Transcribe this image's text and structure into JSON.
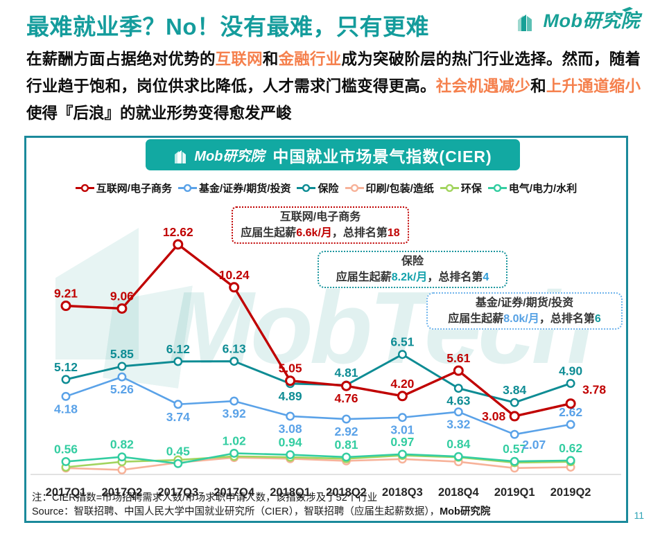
{
  "page": {
    "page_number": "11",
    "title_color": "#149C9C",
    "highlight_color": "#F5804D",
    "panel_border_color": "#1B8A9B",
    "banner_color": "#12A9A2"
  },
  "header": {
    "title": "最难就业季？No！没有最难，只有更难",
    "logo_text": "Mob研究院"
  },
  "intro": {
    "segments": [
      {
        "text": "在薪酬方面占据绝对优势的"
      },
      {
        "text": "互联网"
      },
      {
        "text": "和"
      },
      {
        "text": "金融行业"
      },
      {
        "text": "成为突破阶层的热门行业选择。然而，随着行业趋于饱和，岗位供求比降低，人才需求门槛变得更高。"
      },
      {
        "text": "社会机遇减少"
      },
      {
        "text": "和"
      },
      {
        "text": "上升通道缩小"
      },
      {
        "text": "使得『后浪』的就业形势变得愈发严峻"
      }
    ]
  },
  "panel": {
    "banner": {
      "logo_text": "Mob研究院",
      "title": "中国就业市场景气指数(CIER)"
    },
    "watermark": "MobTech",
    "annotations": [
      {
        "title": "互联网/电子商务",
        "prefix": "应届生起薪",
        "salary": "6.6k/月",
        "mid": "，总排名第",
        "rank": "18",
        "border_color": "#C00000",
        "salary_color": "#C00000",
        "rank_color": "#C00000"
      },
      {
        "title": "保险",
        "prefix": "应届生起薪",
        "salary": "8.2k/月",
        "mid": "，总排名第",
        "rank": "4",
        "border_color": "#17949C",
        "salary_color": "#14A2AC",
        "rank_color": "#2E9BD6"
      },
      {
        "title": "基金/证券/期货/投资",
        "prefix": "应届生起薪",
        "salary": "8.0k/月",
        "mid": "，总排名第",
        "rank": "6",
        "border_color": "#6FB4EC",
        "salary_color": "#55A1E4",
        "rank_color": "#12989C"
      }
    ],
    "notes": {
      "line1": "注：CIER指数=市场招聘需求人数/市场求职申请人数，该指数涉及了52个行业",
      "line2_prefix": "Source：智联招聘、中国人民大学中国就业研究所（CIER），智联招聘（应届生起薪数据），",
      "line2_bold": "Mob研究院"
    }
  },
  "chart_data": {
    "type": "line",
    "title": "中国就业市场景气指数(CIER)",
    "xlabel": "",
    "ylabel": "CIER指数",
    "ylim": [
      0,
      13
    ],
    "grid": false,
    "legend_position": "top",
    "categories": [
      "2017Q1",
      "2017Q2",
      "2017Q3",
      "2017Q4",
      "2018Q1",
      "2018Q2",
      "2018Q3",
      "2018Q4",
      "2019Q1",
      "2019Q2"
    ],
    "series": [
      {
        "name": "互联网/电子商务",
        "color": "#C00000",
        "show_labels": true,
        "values": [
          9.21,
          9.06,
          12.62,
          10.24,
          5.05,
          4.76,
          4.2,
          5.61,
          3.08,
          3.78
        ]
      },
      {
        "name": "基金/证券/期货/投资",
        "color": "#5AA2E8",
        "show_labels": true,
        "values": [
          4.18,
          5.26,
          3.74,
          3.92,
          3.08,
          2.92,
          3.01,
          3.32,
          2.07,
          2.62
        ]
      },
      {
        "name": "保险",
        "color": "#0E8C94",
        "show_labels": true,
        "values": [
          5.12,
          5.85,
          6.12,
          6.13,
          4.89,
          4.81,
          6.51,
          4.63,
          3.84,
          4.9
        ]
      },
      {
        "name": "印刷/包装/造纸",
        "color": "#F7B299",
        "show_labels": false,
        "values_estimated": true,
        "values": [
          0.2,
          0.1,
          0.5,
          0.78,
          0.72,
          0.6,
          0.7,
          0.55,
          0.2,
          0.25
        ]
      },
      {
        "name": "环保",
        "color": "#A2D45E",
        "show_labels": false,
        "values_estimated": true,
        "values": [
          0.25,
          0.55,
          0.65,
          0.85,
          0.8,
          0.72,
          0.9,
          0.8,
          0.5,
          0.55
        ]
      },
      {
        "name": "电气/电力/水利",
        "color": "#33CDA1",
        "show_labels": true,
        "values": [
          0.56,
          0.82,
          0.45,
          1.02,
          0.94,
          0.81,
          0.97,
          0.84,
          0.57,
          0.62
        ]
      }
    ]
  }
}
